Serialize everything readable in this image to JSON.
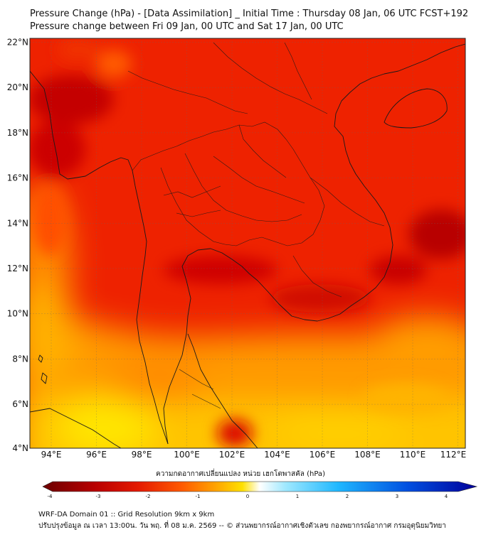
{
  "title_line1": "Pressure Change (hPa) - [Data Assimilation] _ Initial Time : Thursday 08 Jan, 06 UTC FCST+192",
  "title_line2": "Pressure change between Fri 09 Jan, 00 UTC and Sat 17 Jan, 00 UTC",
  "lat_labels": [
    "22°N",
    "20°N",
    "18°N",
    "16°N",
    "14°N",
    "12°N",
    "10°N",
    "8°N",
    "6°N",
    "4°N"
  ],
  "lon_labels": [
    "94°E",
    "96°E",
    "98°E",
    "100°E",
    "102°E",
    "104°E",
    "106°E",
    "108°E",
    "110°E",
    "112°E"
  ],
  "colorbar": {
    "label": "ความกดอากาศเปลี่ยนแปลง หน่วย เฮกโตพาสคัล (hPa)",
    "ticks": [
      "-4",
      "-3",
      "-2",
      "-1",
      "0",
      "1",
      "2",
      "3",
      "4"
    ],
    "range": [
      -4,
      4
    ],
    "colors": [
      "#6b0000",
      "#b80000",
      "#e41a00",
      "#ff5a00",
      "#ffa500",
      "#ffe000",
      "#ffffff",
      "#9fe8ff",
      "#20b8ff",
      "#0050e0",
      "#00009a"
    ]
  },
  "footer_line1": "WRF-DA Domain 01 :: Grid Resolution 9km x 9km",
  "footer_line2": "ปรับปรุงข้อมูล ณ เวลา 13:00น. วัน พฤ. ที่ 08 ม.ค. 2569 -- © ส่วนพยากรณ์อากาศเชิงตัวเลข กองพยากรณ์อากาศ กรมอุตุนิยมวิทยา"
}
